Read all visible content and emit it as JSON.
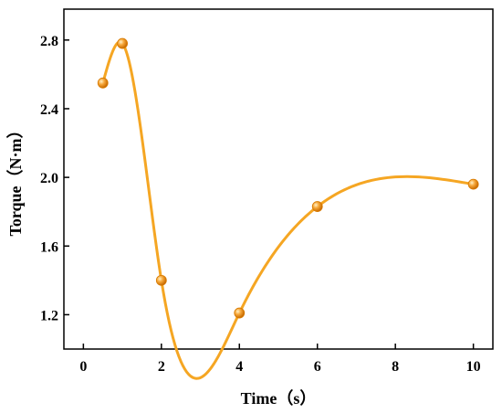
{
  "chart_data": {
    "type": "line",
    "smooth": true,
    "title": "",
    "xlabel": "Time（s）",
    "ylabel": "Torque（N·m）",
    "xlim": [
      -0.5,
      10.5
    ],
    "ylim": [
      1.0,
      2.98
    ],
    "xticks": [
      0,
      2,
      4,
      6,
      8,
      10
    ],
    "yticks": [
      1.2,
      1.6,
      2.0,
      2.4,
      2.8
    ],
    "xtick_labels": [
      "0",
      "2",
      "4",
      "6",
      "8",
      "10"
    ],
    "ytick_labels": [
      "1.2",
      "1.6",
      "2.0",
      "2.4",
      "2.8"
    ],
    "grid": false,
    "legend": "none",
    "series": [
      {
        "color": "#f5a623",
        "marker": "sphere",
        "x": [
          0.5,
          1,
          2,
          4,
          6,
          10
        ],
        "y": [
          2.55,
          2.78,
          1.4,
          1.21,
          1.83,
          1.96
        ]
      }
    ]
  }
}
